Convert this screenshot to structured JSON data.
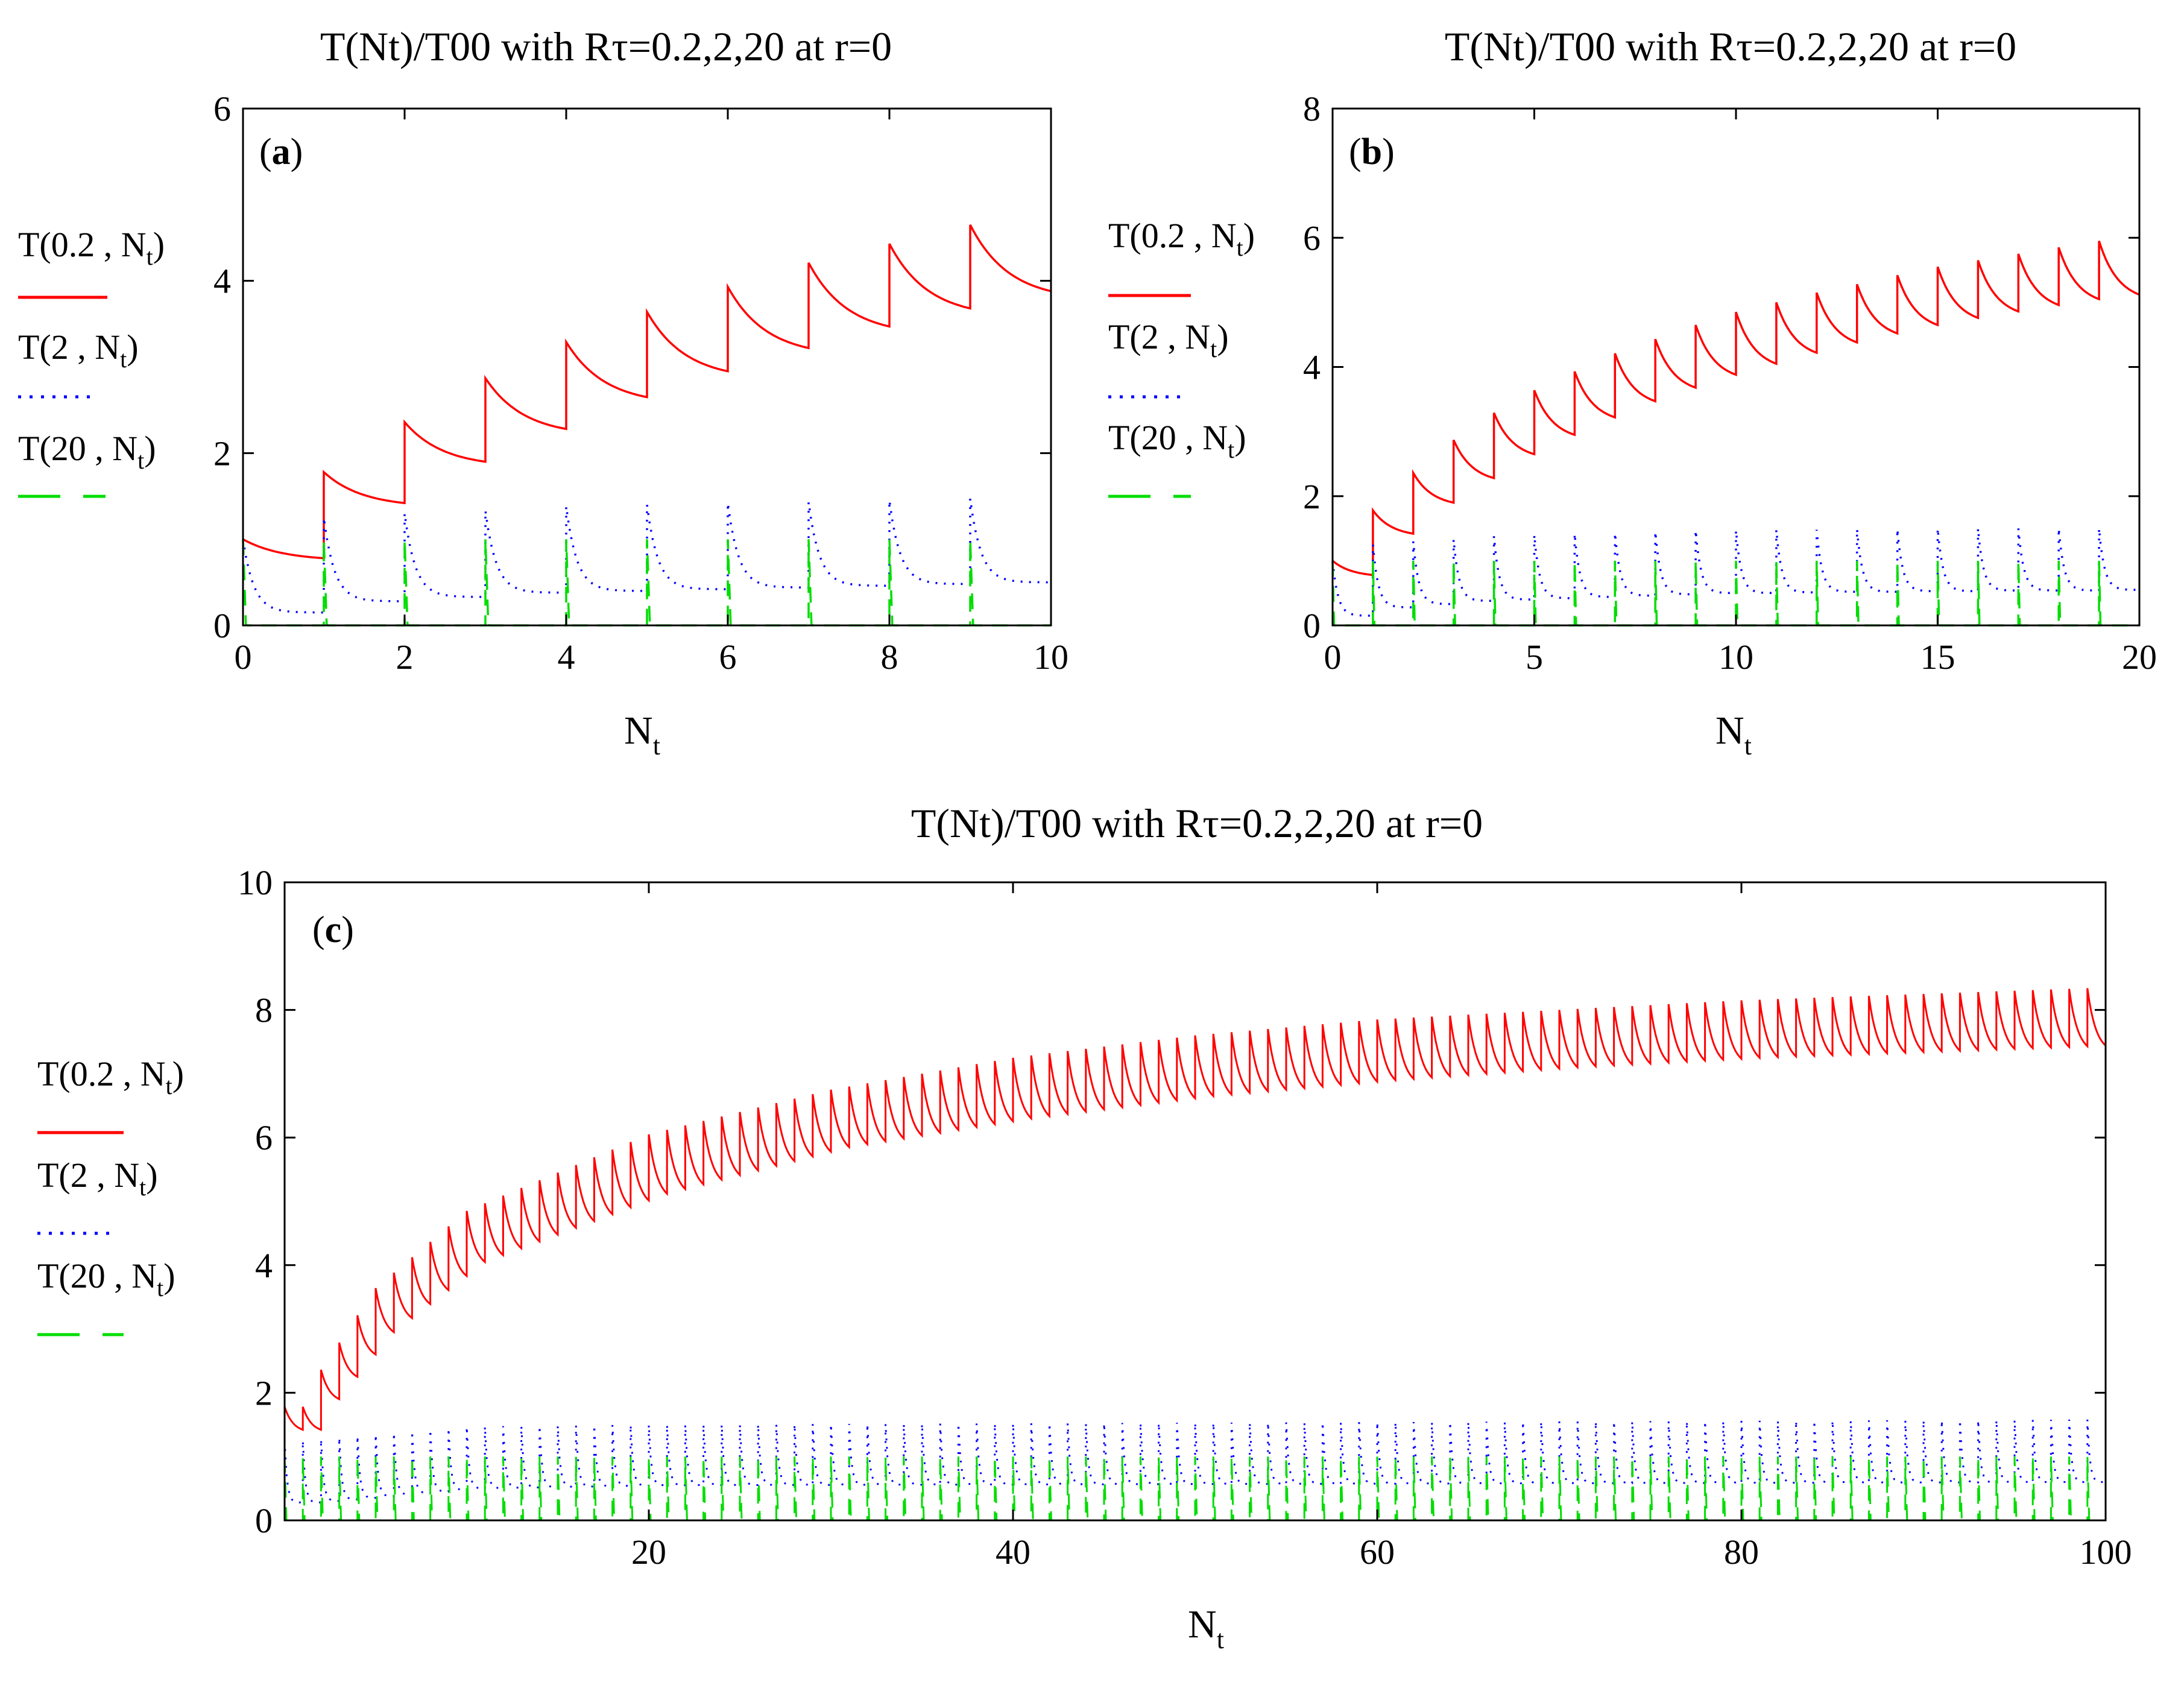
{
  "panels": [
    {
      "id": "a",
      "panel_label": "a",
      "title": "T(Nt)/T00 with Rτ=0.2,2,20 at r=0",
      "xlabel": "N",
      "xlabel_sub": "t",
      "legend": [
        {
          "label": "T(0.2 , N",
          "sub": "t",
          "close": ")",
          "color": "#ff0000",
          "style": "solid"
        },
        {
          "label": "T(2 , N",
          "sub": "t",
          "close": ")",
          "color": "#0000ff",
          "style": "dotted"
        },
        {
          "label": "T(20 , N",
          "sub": "t",
          "close": ")",
          "color": "#00dd00",
          "style": "dashed"
        }
      ]
    },
    {
      "id": "b",
      "panel_label": "b",
      "title": "T(Nt)/T00 with Rτ=0.2,2,20 at r=0",
      "xlabel": "N",
      "xlabel_sub": "t",
      "legend": [
        {
          "label": "T(0.2 , N",
          "sub": "t",
          "close": ")",
          "color": "#ff0000",
          "style": "solid"
        },
        {
          "label": "T(2 , N",
          "sub": "t",
          "close": ")",
          "color": "#0000ff",
          "style": "dotted"
        },
        {
          "label": "T(20 , N",
          "sub": "t",
          "close": ")",
          "color": "#00dd00",
          "style": "dashed"
        }
      ]
    },
    {
      "id": "c",
      "panel_label": "c",
      "title": "T(Nt)/T00 with Rτ=0.2,2,20 at r=0",
      "xlabel": "N",
      "xlabel_sub": "t",
      "legend": [
        {
          "label": "T(0.2 , N",
          "sub": "t",
          "close": ")",
          "color": "#ff0000",
          "style": "solid"
        },
        {
          "label": "T(2 , N",
          "sub": "t",
          "close": ")",
          "color": "#0000ff",
          "style": "dotted"
        },
        {
          "label": "T(20 , N",
          "sub": "t",
          "close": ")",
          "color": "#00dd00",
          "style": "dashed"
        }
      ]
    }
  ],
  "chart_data": [
    {
      "type": "line",
      "panel": "a",
      "title": "T(Nt)/T00 with Rτ=0.2,2,20 at r=0",
      "xlabel": "Nt",
      "ylabel": "",
      "xlim": [
        0,
        10
      ],
      "ylim": [
        0,
        6
      ],
      "xticks": [
        0,
        2,
        4,
        6,
        8,
        10
      ],
      "yticks": [
        0,
        2,
        4,
        6
      ],
      "grid": false,
      "legend_position": "left",
      "series": [
        {
          "name": "T(0.2,Nt)",
          "color": "#ff0000",
          "style": "solid",
          "peaks": [
            1.0,
            1.78,
            2.36,
            2.87,
            3.29,
            3.64,
            3.93,
            4.21,
            4.43,
            4.65,
            4.85
          ],
          "troughs": [
            0.78,
            1.42,
            1.9,
            2.28,
            2.65,
            2.95,
            3.22,
            3.47,
            3.68,
            3.88
          ]
        },
        {
          "name": "T(2,Nt)",
          "color": "#0000ff",
          "style": "dotted",
          "peaks": [
            1.0,
            1.25,
            1.3,
            1.33,
            1.38,
            1.4,
            1.42,
            1.43,
            1.45,
            1.47
          ],
          "troughs": [
            0.15,
            0.28,
            0.33,
            0.38,
            0.4,
            0.42,
            0.44,
            0.46,
            0.48,
            0.5
          ]
        },
        {
          "name": "T(20,Nt)",
          "color": "#00dd00",
          "style": "dashed",
          "peaks": [
            1.0,
            1.0,
            1.0,
            1.0,
            1.0,
            1.0,
            1.0,
            1.0,
            1.0,
            1.0,
            1.0
          ],
          "troughs": [
            0.0,
            0.0,
            0.0,
            0.0,
            0.0,
            0.0,
            0.0,
            0.0,
            0.0,
            0.0
          ]
        }
      ]
    },
    {
      "type": "line",
      "panel": "b",
      "title": "T(Nt)/T00 with Rτ=0.2,2,20 at r=0",
      "xlabel": "Nt",
      "ylabel": "",
      "xlim": [
        0,
        20
      ],
      "ylim": [
        0,
        8
      ],
      "xticks": [
        0,
        5,
        10,
        15,
        20
      ],
      "yticks": [
        0,
        2,
        4,
        6,
        8
      ],
      "grid": false,
      "legend_position": "left",
      "series": [
        {
          "name": "T(0.2,Nt)",
          "color": "#ff0000",
          "style": "solid",
          "peaks": [
            1.0,
            1.78,
            2.36,
            2.87,
            3.29,
            3.64,
            3.93,
            4.21,
            4.43,
            4.65,
            4.85,
            5.0,
            5.15,
            5.28,
            5.42,
            5.55,
            5.65,
            5.75,
            5.85,
            5.95,
            6.05
          ],
          "troughs": [
            0.78,
            1.42,
            1.9,
            2.28,
            2.65,
            2.95,
            3.22,
            3.47,
            3.68,
            3.88,
            4.05,
            4.22,
            4.38,
            4.52,
            4.65,
            4.76,
            4.86,
            4.96,
            5.05,
            5.12
          ]
        },
        {
          "name": "T(2,Nt)",
          "color": "#0000ff",
          "style": "dotted",
          "peaks": [
            1.0,
            1.25,
            1.3,
            1.33,
            1.38,
            1.4,
            1.42,
            1.43,
            1.45,
            1.47,
            1.47,
            1.48,
            1.48,
            1.49,
            1.49,
            1.5,
            1.5,
            1.5,
            1.5,
            1.5
          ],
          "troughs": [
            0.15,
            0.28,
            0.33,
            0.38,
            0.4,
            0.42,
            0.44,
            0.46,
            0.48,
            0.5,
            0.5,
            0.51,
            0.52,
            0.52,
            0.53,
            0.53,
            0.54,
            0.54,
            0.54,
            0.55
          ]
        },
        {
          "name": "T(20,Nt)",
          "color": "#00dd00",
          "style": "dashed",
          "peaks": [
            1.0,
            1.0,
            1.0,
            1.0,
            1.0,
            1.0,
            1.0,
            1.0,
            1.0,
            1.0,
            1.0,
            1.0,
            1.0,
            1.0,
            1.0,
            1.0,
            1.0,
            1.0,
            1.0,
            1.0,
            1.0
          ],
          "troughs": [
            0.0,
            0.0,
            0.0,
            0.0,
            0.0,
            0.0,
            0.0,
            0.0,
            0.0,
            0.0,
            0.0,
            0.0,
            0.0,
            0.0,
            0.0,
            0.0,
            0.0,
            0.0,
            0.0,
            0.0
          ]
        }
      ]
    },
    {
      "type": "line",
      "panel": "c",
      "title": "T(Nt)/T00 with Rτ=0.2,2,20 at r=0",
      "xlabel": "Nt",
      "ylabel": "",
      "xlim": [
        0,
        100
      ],
      "ylim": [
        0,
        10
      ],
      "xticks": [
        20,
        40,
        60,
        80,
        100
      ],
      "yticks": [
        0,
        2,
        4,
        6,
        8,
        10
      ],
      "grid": false,
      "legend_position": "left",
      "series": [
        {
          "name": "T(0.2,Nt)",
          "color": "#ff0000",
          "style": "solid",
          "peak_envelope": [
            [
              1,
              1.78
            ],
            [
              2,
              2.36
            ],
            [
              5,
              3.64
            ],
            [
              10,
              4.85
            ],
            [
              20,
              6.05
            ],
            [
              30,
              6.75
            ],
            [
              40,
              7.25
            ],
            [
              50,
              7.6
            ],
            [
              60,
              7.85
            ],
            [
              70,
              8.0
            ],
            [
              80,
              8.15
            ],
            [
              90,
              8.25
            ],
            [
              100,
              8.35
            ]
          ],
          "trough_envelope": [
            [
              1,
              1.42
            ],
            [
              2,
              1.9
            ],
            [
              5,
              2.95
            ],
            [
              10,
              4.05
            ],
            [
              20,
              5.12
            ],
            [
              30,
              5.85
            ],
            [
              40,
              6.3
            ],
            [
              50,
              6.65
            ],
            [
              60,
              6.9
            ],
            [
              70,
              7.1
            ],
            [
              80,
              7.25
            ],
            [
              90,
              7.35
            ],
            [
              100,
              7.45
            ]
          ]
        },
        {
          "name": "T(2,Nt)",
          "color": "#0000ff",
          "style": "dotted",
          "peak_envelope": [
            [
              1,
              1.25
            ],
            [
              10,
              1.47
            ],
            [
              20,
              1.5
            ],
            [
              100,
              1.58
            ]
          ],
          "trough_envelope": [
            [
              1,
              0.28
            ],
            [
              10,
              0.5
            ],
            [
              20,
              0.55
            ],
            [
              100,
              0.6
            ]
          ]
        },
        {
          "name": "T(20,Nt)",
          "color": "#00dd00",
          "style": "dashed",
          "peak_envelope": [
            [
              1,
              1.0
            ],
            [
              100,
              1.0
            ]
          ],
          "trough_envelope": [
            [
              1,
              0.0
            ],
            [
              100,
              0.0
            ]
          ]
        }
      ]
    }
  ]
}
